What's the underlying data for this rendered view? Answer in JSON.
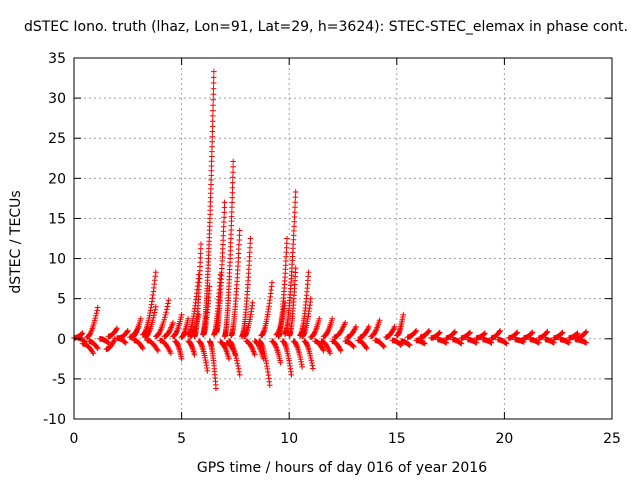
{
  "chart_data": {
    "type": "scatter",
    "title": "dSTEC Iono. truth (lhaz, Lon=91, Lat=29, h=3624): STEC-STEC_elemax in phase cont.",
    "xlabel": "GPS time / hours of day 016 of year 2016",
    "ylabel": "dSTEC  / TECUs",
    "xlim": [
      0,
      25
    ],
    "ylim": [
      -10,
      35
    ],
    "x_ticks": [
      0,
      5,
      10,
      15,
      20,
      25
    ],
    "x_tick_labels": [
      "0",
      "5",
      "10",
      "15",
      "20",
      "25"
    ],
    "y_ticks": [
      -10,
      -5,
      0,
      5,
      10,
      15,
      20,
      25,
      30,
      35
    ],
    "y_tick_labels": [
      "-10",
      "-5",
      "0",
      "5",
      "10",
      "15",
      "20",
      "25",
      "30",
      "35"
    ],
    "grid": true,
    "marker": "+",
    "marker_color": "#ff0000",
    "series": [
      {
        "name": "STEC-STEC_elemax",
        "arcs": [
          {
            "start": 0.0,
            "end": 0.4,
            "from": 0.1,
            "to": 0.7
          },
          {
            "start": 0.2,
            "end": 0.5,
            "from": 0.1,
            "to": -0.4
          },
          {
            "start": 0.4,
            "end": 0.9,
            "from": -0.6,
            "to": -1.8
          },
          {
            "start": 0.6,
            "end": 1.1,
            "from": 0.2,
            "to": 3.9
          },
          {
            "start": 0.7,
            "end": 1.1,
            "from": -0.3,
            "to": -1.2
          },
          {
            "start": 1.2,
            "end": 1.6,
            "from": 0.0,
            "to": -0.5
          },
          {
            "start": 1.5,
            "end": 1.9,
            "from": -1.3,
            "to": 0.0
          },
          {
            "start": 1.6,
            "end": 2.0,
            "from": 0.3,
            "to": 1.3
          },
          {
            "start": 2.0,
            "end": 2.4,
            "from": 0.1,
            "to": -0.5
          },
          {
            "start": 2.1,
            "end": 2.5,
            "from": 0.1,
            "to": 1.0
          },
          {
            "start": 2.6,
            "end": 3.0,
            "from": 0.2,
            "to": 1.5
          },
          {
            "start": 2.7,
            "end": 3.1,
            "from": 0.2,
            "to": 2.5
          },
          {
            "start": 2.8,
            "end": 3.2,
            "from": -0.2,
            "to": -1.2
          },
          {
            "start": 3.2,
            "end": 3.8,
            "from": 0.5,
            "to": 8.3
          },
          {
            "start": 3.3,
            "end": 3.8,
            "from": 0.2,
            "to": 4.0
          },
          {
            "start": 3.4,
            "end": 3.9,
            "from": -0.2,
            "to": -1.5
          },
          {
            "start": 3.8,
            "end": 4.4,
            "from": 0.3,
            "to": 4.8
          },
          {
            "start": 4.0,
            "end": 4.5,
            "from": -0.2,
            "to": -1.8
          },
          {
            "start": 4.2,
            "end": 4.6,
            "from": 0.3,
            "to": 2.0
          },
          {
            "start": 4.7,
            "end": 5.0,
            "from": -0.3,
            "to": -2.5
          },
          {
            "start": 4.6,
            "end": 5.0,
            "from": 0.3,
            "to": 3.0
          },
          {
            "start": 5.0,
            "end": 5.3,
            "from": 0.2,
            "to": 2.5
          },
          {
            "start": 5.3,
            "end": 5.6,
            "from": -0.3,
            "to": -2.0
          },
          {
            "start": 5.3,
            "end": 5.8,
            "from": 0.5,
            "to": 8.0
          },
          {
            "start": 5.4,
            "end": 5.8,
            "from": 0.3,
            "to": 3.0
          },
          {
            "start": 5.6,
            "end": 5.9,
            "from": 0.3,
            "to": 11.8
          },
          {
            "start": 5.8,
            "end": 6.2,
            "from": -0.3,
            "to": -4.0
          },
          {
            "start": 6.0,
            "end": 6.3,
            "from": 0.5,
            "to": 6.5
          },
          {
            "start": 6.0,
            "end": 6.5,
            "from": 0.6,
            "to": 33.3
          },
          {
            "start": 6.3,
            "end": 6.6,
            "from": -0.3,
            "to": -6.2
          },
          {
            "start": 6.5,
            "end": 6.8,
            "from": 0.5,
            "to": 8.0
          },
          {
            "start": 6.6,
            "end": 7.0,
            "from": 0.8,
            "to": 17.0
          },
          {
            "start": 6.8,
            "end": 7.2,
            "from": -0.4,
            "to": -2.5
          },
          {
            "start": 7.0,
            "end": 7.4,
            "from": 0.3,
            "to": 22.1
          },
          {
            "start": 7.1,
            "end": 7.5,
            "from": -0.5,
            "to": -2.0
          },
          {
            "start": 7.2,
            "end": 7.7,
            "from": -0.3,
            "to": -4.5
          },
          {
            "start": 7.3,
            "end": 7.7,
            "from": 0.4,
            "to": 13.5
          },
          {
            "start": 7.8,
            "end": 8.2,
            "from": 0.3,
            "to": 12.5
          },
          {
            "start": 7.9,
            "end": 8.3,
            "from": 0.3,
            "to": 4.5
          },
          {
            "start": 8.0,
            "end": 8.4,
            "from": -0.3,
            "to": -2.0
          },
          {
            "start": 8.4,
            "end": 8.8,
            "from": -0.3,
            "to": -2.5
          },
          {
            "start": 8.6,
            "end": 9.1,
            "from": -0.3,
            "to": -5.8
          },
          {
            "start": 8.7,
            "end": 9.2,
            "from": 0.4,
            "to": 7.0
          },
          {
            "start": 9.2,
            "end": 9.6,
            "from": -0.3,
            "to": -3.0
          },
          {
            "start": 9.4,
            "end": 9.8,
            "from": 0.5,
            "to": 4.5
          },
          {
            "start": 9.5,
            "end": 9.9,
            "from": 0.3,
            "to": 12.5
          },
          {
            "start": 9.7,
            "end": 10.1,
            "from": -0.3,
            "to": -4.5
          },
          {
            "start": 9.8,
            "end": 10.3,
            "from": 0.6,
            "to": 18.3
          },
          {
            "start": 10.0,
            "end": 10.3,
            "from": 0.4,
            "to": 8.8
          },
          {
            "start": 10.2,
            "end": 10.6,
            "from": -0.3,
            "to": -3.5
          },
          {
            "start": 10.5,
            "end": 10.9,
            "from": 0.4,
            "to": 8.3
          },
          {
            "start": 10.6,
            "end": 11.0,
            "from": 0.3,
            "to": 5.0
          },
          {
            "start": 10.7,
            "end": 11.1,
            "from": -0.3,
            "to": -3.7
          },
          {
            "start": 11.0,
            "end": 11.4,
            "from": 0.2,
            "to": 2.5
          },
          {
            "start": 11.2,
            "end": 11.6,
            "from": -0.3,
            "to": -1.5
          },
          {
            "start": 11.5,
            "end": 11.9,
            "from": -0.3,
            "to": -1.8
          },
          {
            "start": 11.6,
            "end": 12.0,
            "from": 0.3,
            "to": 2.5
          },
          {
            "start": 12.0,
            "end": 12.4,
            "from": -0.3,
            "to": -1.5
          },
          {
            "start": 12.1,
            "end": 12.6,
            "from": 0.2,
            "to": 2.0
          },
          {
            "start": 12.6,
            "end": 13.0,
            "from": -0.3,
            "to": -1.0
          },
          {
            "start": 12.7,
            "end": 13.1,
            "from": 0.2,
            "to": 1.5
          },
          {
            "start": 13.2,
            "end": 13.6,
            "from": -0.2,
            "to": -1.2
          },
          {
            "start": 13.3,
            "end": 13.7,
            "from": 0.2,
            "to": 1.5
          },
          {
            "start": 13.8,
            "end": 14.2,
            "from": 0.3,
            "to": 2.3
          },
          {
            "start": 14.0,
            "end": 14.4,
            "from": -0.2,
            "to": -1.0
          },
          {
            "start": 14.5,
            "end": 14.9,
            "from": 0.2,
            "to": 1.5
          },
          {
            "start": 14.8,
            "end": 15.2,
            "from": -0.2,
            "to": -0.8
          },
          {
            "start": 15.0,
            "end": 15.3,
            "from": 0.4,
            "to": 3.0
          },
          {
            "start": 15.2,
            "end": 15.6,
            "from": -0.3,
            "to": -0.8
          },
          {
            "start": 15.5,
            "end": 15.9,
            "from": 0.2,
            "to": 1.0
          },
          {
            "start": 15.9,
            "end": 16.3,
            "from": -0.2,
            "to": -0.6
          },
          {
            "start": 16.1,
            "end": 16.5,
            "from": 0.2,
            "to": 1.0
          },
          {
            "start": 16.6,
            "end": 17.0,
            "from": 0.1,
            "to": 0.8
          },
          {
            "start": 16.9,
            "end": 17.3,
            "from": -0.1,
            "to": -0.5
          },
          {
            "start": 17.3,
            "end": 17.7,
            "from": 0.1,
            "to": 0.9
          },
          {
            "start": 17.6,
            "end": 18.0,
            "from": -0.1,
            "to": -0.6
          },
          {
            "start": 18.0,
            "end": 18.4,
            "from": 0.1,
            "to": 0.8
          },
          {
            "start": 18.3,
            "end": 18.7,
            "from": -0.1,
            "to": -0.5
          },
          {
            "start": 18.7,
            "end": 19.1,
            "from": 0.1,
            "to": 0.7
          },
          {
            "start": 19.0,
            "end": 19.4,
            "from": -0.1,
            "to": -0.5
          },
          {
            "start": 19.4,
            "end": 19.8,
            "from": 0.1,
            "to": 1.0
          },
          {
            "start": 19.7,
            "end": 20.1,
            "from": -0.1,
            "to": -0.6
          },
          {
            "start": 20.2,
            "end": 20.6,
            "from": 0.1,
            "to": 0.8
          },
          {
            "start": 20.5,
            "end": 20.9,
            "from": -0.1,
            "to": -0.4
          },
          {
            "start": 20.9,
            "end": 21.3,
            "from": 0.1,
            "to": 0.8
          },
          {
            "start": 21.2,
            "end": 21.6,
            "from": -0.1,
            "to": -0.5
          },
          {
            "start": 21.6,
            "end": 22.0,
            "from": 0.1,
            "to": 0.9
          },
          {
            "start": 21.9,
            "end": 22.3,
            "from": -0.1,
            "to": -0.5
          },
          {
            "start": 22.3,
            "end": 22.7,
            "from": 0.1,
            "to": 0.8
          },
          {
            "start": 22.6,
            "end": 23.0,
            "from": -0.1,
            "to": -0.5
          },
          {
            "start": 23.0,
            "end": 23.4,
            "from": 0.1,
            "to": 0.7
          },
          {
            "start": 23.3,
            "end": 23.8,
            "from": -0.1,
            "to": -0.5
          },
          {
            "start": 23.4,
            "end": 23.8,
            "from": 0.1,
            "to": 0.9
          }
        ]
      }
    ]
  }
}
